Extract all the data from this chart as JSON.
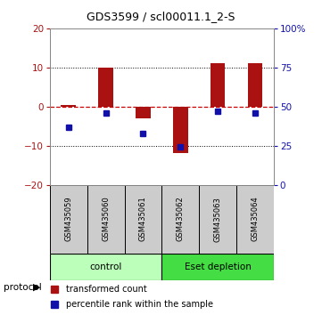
{
  "title": "GDS3599 / scl00011.1_2-S",
  "samples": [
    "GSM435059",
    "GSM435060",
    "GSM435061",
    "GSM435062",
    "GSM435063",
    "GSM435064"
  ],
  "red_bars": [
    0.5,
    10.0,
    -3.0,
    -12.0,
    11.0,
    11.0
  ],
  "blue_dots_pct": [
    37,
    46,
    33,
    24,
    47,
    46
  ],
  "ylim": [
    -20,
    20
  ],
  "yticks_left": [
    -20,
    -10,
    0,
    10,
    20
  ],
  "yticks_right": [
    0,
    25,
    50,
    75,
    100
  ],
  "groups": [
    {
      "label": "control",
      "start": 0,
      "end": 3,
      "color": "#bbffbb"
    },
    {
      "label": "Eset depletion",
      "start": 3,
      "end": 6,
      "color": "#44dd44"
    }
  ],
  "bar_color": "#aa1111",
  "dot_color": "#1111aa",
  "dashed_line_color": "#cc0000",
  "bg_color": "#ffffff",
  "sample_bg": "#cccccc"
}
